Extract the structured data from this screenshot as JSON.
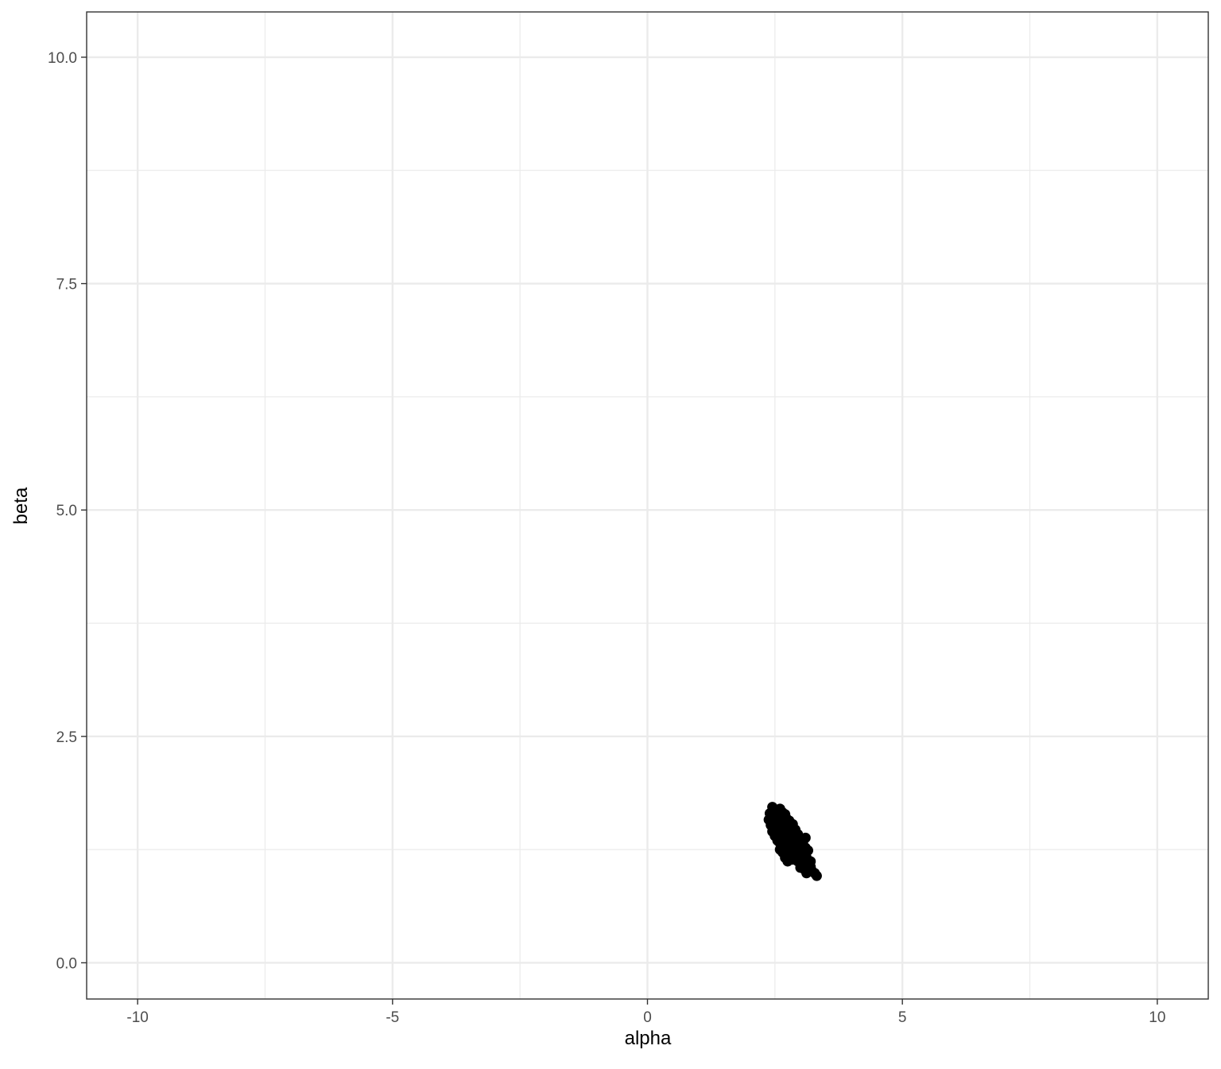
{
  "chart_data": {
    "type": "scatter",
    "title": "",
    "xlabel": "alpha",
    "ylabel": "beta",
    "xlim": [
      -11,
      11
    ],
    "ylim": [
      -0.4,
      10.5
    ],
    "x_ticks": [
      -10,
      -5,
      0,
      5,
      10
    ],
    "x_tick_labels": [
      "-10",
      "-5",
      "0",
      "5",
      "10"
    ],
    "y_ticks": [
      0,
      2.5,
      5,
      7.5,
      10
    ],
    "y_tick_labels": [
      "0.0",
      "2.5",
      "5.0",
      "7.5",
      "10.0"
    ],
    "grid": true,
    "theme": "bw",
    "point_color": "#000000",
    "points": [
      [
        2.45,
        1.72
      ],
      [
        2.4,
        1.65
      ],
      [
        2.38,
        1.58
      ],
      [
        2.5,
        1.68
      ],
      [
        2.55,
        1.62
      ],
      [
        2.6,
        1.7
      ],
      [
        2.65,
        1.66
      ],
      [
        2.7,
        1.64
      ],
      [
        2.48,
        1.55
      ],
      [
        2.52,
        1.5
      ],
      [
        2.58,
        1.56
      ],
      [
        2.62,
        1.58
      ],
      [
        2.68,
        1.55
      ],
      [
        2.72,
        1.6
      ],
      [
        2.78,
        1.57
      ],
      [
        2.75,
        1.52
      ],
      [
        2.8,
        1.5
      ],
      [
        2.85,
        1.53
      ],
      [
        2.45,
        1.45
      ],
      [
        2.5,
        1.4
      ],
      [
        2.55,
        1.44
      ],
      [
        2.6,
        1.47
      ],
      [
        2.65,
        1.42
      ],
      [
        2.7,
        1.46
      ],
      [
        2.75,
        1.43
      ],
      [
        2.8,
        1.41
      ],
      [
        2.85,
        1.45
      ],
      [
        2.9,
        1.47
      ],
      [
        2.95,
        1.42
      ],
      [
        2.88,
        1.38
      ],
      [
        2.55,
        1.35
      ],
      [
        2.6,
        1.32
      ],
      [
        2.65,
        1.36
      ],
      [
        2.7,
        1.33
      ],
      [
        2.75,
        1.3
      ],
      [
        2.8,
        1.34
      ],
      [
        2.85,
        1.31
      ],
      [
        2.9,
        1.35
      ],
      [
        2.95,
        1.32
      ],
      [
        3.0,
        1.36
      ],
      [
        3.05,
        1.33
      ],
      [
        3.1,
        1.38
      ],
      [
        2.6,
        1.25
      ],
      [
        2.65,
        1.22
      ],
      [
        2.7,
        1.27
      ],
      [
        2.75,
        1.2
      ],
      [
        2.8,
        1.24
      ],
      [
        2.85,
        1.21
      ],
      [
        2.9,
        1.26
      ],
      [
        2.95,
        1.23
      ],
      [
        3.0,
        1.25
      ],
      [
        3.05,
        1.22
      ],
      [
        3.1,
        1.27
      ],
      [
        3.15,
        1.24
      ],
      [
        2.7,
        1.16
      ],
      [
        2.75,
        1.12
      ],
      [
        2.85,
        1.14
      ],
      [
        2.9,
        1.17
      ],
      [
        2.95,
        1.12
      ],
      [
        3.0,
        1.15
      ],
      [
        3.05,
        1.1
      ],
      [
        3.1,
        1.13
      ],
      [
        3.15,
        1.09
      ],
      [
        3.2,
        1.12
      ],
      [
        3.0,
        1.05
      ],
      [
        3.08,
        1.03
      ],
      [
        3.15,
        1.04
      ],
      [
        3.22,
        1.02
      ],
      [
        3.28,
        0.99
      ],
      [
        3.32,
        0.96
      ],
      [
        3.12,
        0.99
      ],
      [
        3.2,
        1.06
      ],
      [
        2.42,
        1.52
      ],
      [
        2.47,
        1.62
      ],
      [
        2.58,
        1.48
      ],
      [
        2.67,
        1.5
      ],
      [
        2.73,
        1.38
      ],
      [
        2.82,
        1.28
      ],
      [
        2.92,
        1.3
      ],
      [
        2.98,
        1.2
      ],
      [
        3.07,
        1.18
      ],
      [
        2.63,
        1.29
      ],
      [
        2.78,
        1.18
      ],
      [
        2.83,
        1.4
      ],
      [
        2.53,
        1.59
      ],
      [
        2.68,
        1.4
      ],
      [
        2.93,
        1.38
      ],
      [
        3.02,
        1.29
      ],
      [
        3.12,
        1.16
      ],
      [
        2.88,
        1.22
      ]
    ]
  }
}
